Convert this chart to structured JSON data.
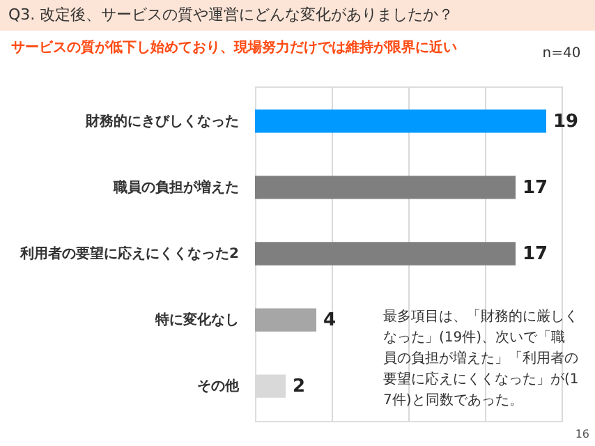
{
  "chart_data": {
    "type": "bar",
    "orientation": "horizontal",
    "title": "Q3. 改定後、サービスの質や運営にどんな変化がありましたか？",
    "subtitle": "サービスの質が低下し始めており、現場努力だけでは維持が限界に近い",
    "categories": [
      "財務的にきびしくなった",
      "職員の負担が増えた",
      "利用者の要望に応えにくくなった2",
      "特に変化なし",
      "その他"
    ],
    "values": [
      19,
      17,
      17,
      4,
      2
    ],
    "colors": [
      "#0099ff",
      "#7f7f7f",
      "#7f7f7f",
      "#a6a6a6",
      "#d9d9d9"
    ],
    "xlim": [
      0,
      20
    ],
    "xticks": [
      {
        "value": 5,
        "label": null
      },
      {
        "value": 10,
        "label": null
      },
      {
        "value": 15,
        "label": null
      },
      {
        "value": 20,
        "label": null
      }
    ],
    "grid": "x",
    "tick_labels": "y",
    "data_labels": true,
    "legend": false,
    "annotations": [
      "n=40",
      "最多項目は、「財務的に厳しくなった」(19件)、次いで「職員の負担が増えた」「利用者の要望に応えにくくなった」が(17件)と同数であった。",
      "16"
    ]
  }
}
